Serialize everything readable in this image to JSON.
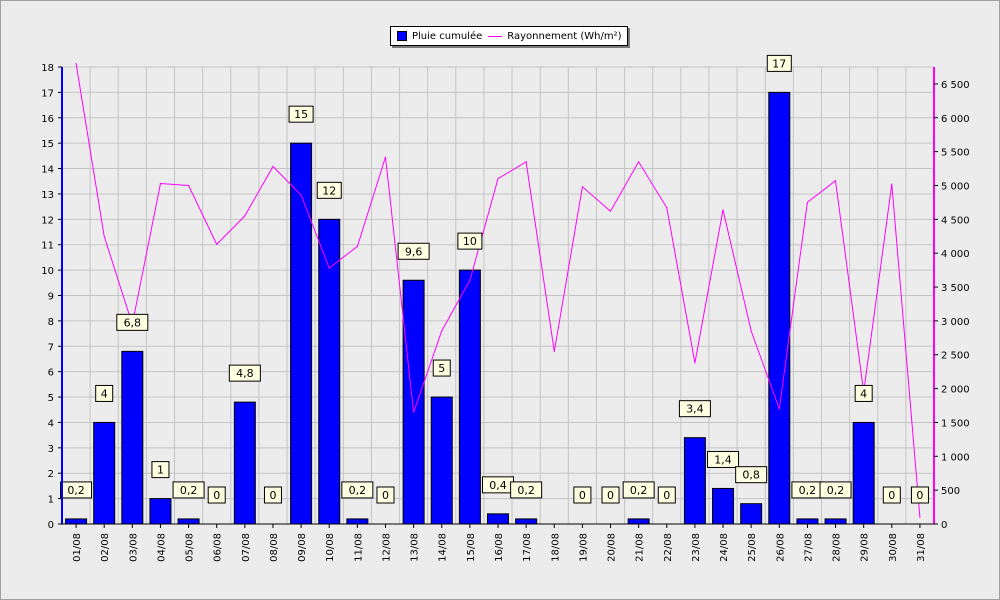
{
  "chart_data": {
    "type": "bar",
    "categories": [
      "01/08",
      "02/08",
      "03/08",
      "04/08",
      "05/08",
      "06/08",
      "07/08",
      "08/08",
      "09/08",
      "10/08",
      "11/08",
      "12/08",
      "13/08",
      "14/08",
      "15/08",
      "16/08",
      "17/08",
      "18/08",
      "19/08",
      "20/08",
      "21/08",
      "22/08",
      "23/08",
      "24/08",
      "25/08",
      "26/08",
      "27/08",
      "28/08",
      "29/08",
      "30/08",
      "31/08"
    ],
    "series": [
      {
        "name": "Pluie cumulée",
        "type": "bar",
        "axis": "left",
        "color": "#0000ff",
        "values": [
          0.2,
          4,
          6.8,
          1,
          0.2,
          0,
          4.8,
          0,
          15,
          12,
          0.2,
          0,
          9.6,
          5,
          10,
          0.4,
          0.2,
          null,
          0,
          0,
          0.2,
          0,
          3.4,
          1.4,
          0.8,
          17,
          0.2,
          0.2,
          4,
          0,
          0
        ],
        "labels": [
          "0,2",
          "4",
          "6,8",
          "1",
          "0,2",
          "0",
          "4,8",
          "0",
          "15",
          "12",
          "0,2",
          "0",
          "9,6",
          "5",
          "10",
          "0,4",
          "0,2",
          "",
          "0",
          "0",
          "0,2",
          "0",
          "3,4",
          "1,4",
          "0,8",
          "17",
          "0,2",
          "0,2",
          "4",
          "0",
          "0"
        ]
      },
      {
        "name": "Rayonnement (Wh/m²)",
        "type": "line",
        "axis": "right",
        "color": "#ff00ff",
        "values": [
          6800,
          4250,
          2950,
          5030,
          5000,
          4130,
          4550,
          5280,
          4860,
          3780,
          4100,
          5420,
          1650,
          2850,
          3600,
          5100,
          5350,
          2550,
          4980,
          4620,
          5350,
          4670,
          2380,
          4640,
          2850,
          1700,
          4750,
          5070,
          1950,
          5020,
          100
        ]
      }
    ],
    "left_axis": {
      "min": 0,
      "max": 18,
      "ticks": [
        "0",
        "1",
        "2",
        "3",
        "4",
        "5",
        "6",
        "7",
        "8",
        "9",
        "10",
        "11",
        "12",
        "13",
        "14",
        "15",
        "16",
        "17",
        "18"
      ]
    },
    "right_axis": {
      "min": 0,
      "max": 6750,
      "ticks": [
        "0",
        "500",
        "1 000",
        "1 500",
        "2 000",
        "2 500",
        "3 000",
        "3 500",
        "4 000",
        "4 500",
        "5 000",
        "5 500",
        "6 000",
        "6 500"
      ]
    },
    "grid": true,
    "legend_placement": "top-center"
  }
}
